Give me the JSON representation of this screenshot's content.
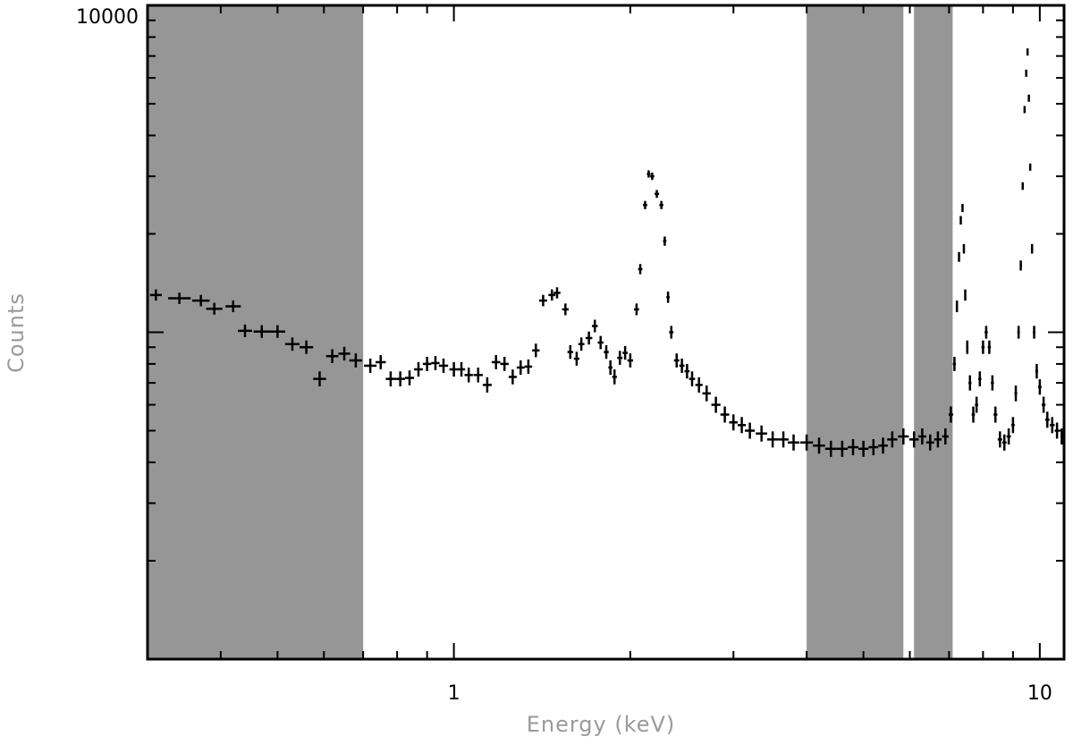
{
  "chart_data": {
    "type": "scatter",
    "xlabel": "Energy (keV)",
    "ylabel": "Counts",
    "xscale": "log",
    "yscale": "log",
    "xlim": [
      0.3,
      11.0
    ],
    "ylim": [
      100,
      10000
    ],
    "x_tick_labels": [
      "1",
      "10"
    ],
    "y_tick_labels": [
      "10000"
    ],
    "grid": false,
    "shaded_regions": [
      {
        "x0": 0.3,
        "x1": 0.7,
        "color": "#969696"
      },
      {
        "x0": 4.0,
        "x1": 5.85,
        "color": "#969696"
      },
      {
        "x0": 6.1,
        "x1": 7.1,
        "color": "#969696"
      }
    ],
    "series": [
      {
        "points": [
          [
            0.31,
            1300
          ],
          [
            0.34,
            1270
          ],
          [
            0.37,
            1250
          ],
          [
            0.39,
            1180
          ],
          [
            0.42,
            1200
          ],
          [
            0.44,
            1010
          ],
          [
            0.47,
            1005
          ],
          [
            0.5,
            1005
          ],
          [
            0.53,
            920
          ],
          [
            0.56,
            900
          ],
          [
            0.59,
            720
          ],
          [
            0.62,
            845
          ],
          [
            0.65,
            860
          ],
          [
            0.68,
            820
          ],
          [
            0.72,
            790
          ],
          [
            0.75,
            810
          ],
          [
            0.78,
            720
          ],
          [
            0.81,
            720
          ],
          [
            0.84,
            725
          ],
          [
            0.87,
            770
          ],
          [
            0.9,
            800
          ],
          [
            0.93,
            805
          ],
          [
            0.96,
            790
          ],
          [
            1.0,
            770
          ],
          [
            1.03,
            770
          ],
          [
            1.06,
            740
          ],
          [
            1.1,
            740
          ],
          [
            1.14,
            690
          ],
          [
            1.18,
            810
          ],
          [
            1.22,
            800
          ],
          [
            1.26,
            730
          ],
          [
            1.3,
            780
          ],
          [
            1.34,
            785
          ],
          [
            1.38,
            880
          ],
          [
            1.42,
            1250
          ],
          [
            1.47,
            1300
          ],
          [
            1.5,
            1320
          ],
          [
            1.55,
            1175
          ],
          [
            1.58,
            870
          ],
          [
            1.62,
            830
          ],
          [
            1.65,
            920
          ],
          [
            1.7,
            960
          ],
          [
            1.74,
            1045
          ],
          [
            1.78,
            930
          ],
          [
            1.82,
            870
          ],
          [
            1.85,
            780
          ],
          [
            1.88,
            730
          ],
          [
            1.92,
            835
          ],
          [
            1.96,
            865
          ],
          [
            2.0,
            820
          ],
          [
            2.05,
            1175
          ],
          [
            2.08,
            1560
          ],
          [
            2.12,
            2450
          ],
          [
            2.15,
            3050
          ],
          [
            2.18,
            3000
          ],
          [
            2.22,
            2650
          ],
          [
            2.26,
            2450
          ],
          [
            2.29,
            1900
          ],
          [
            2.32,
            1280
          ],
          [
            2.35,
            1000
          ],
          [
            2.4,
            820
          ],
          [
            2.45,
            790
          ],
          [
            2.5,
            760
          ],
          [
            2.55,
            720
          ],
          [
            2.62,
            690
          ],
          [
            2.7,
            650
          ],
          [
            2.8,
            600
          ],
          [
            2.9,
            560
          ],
          [
            3.0,
            530
          ],
          [
            3.1,
            520
          ],
          [
            3.2,
            500
          ],
          [
            3.35,
            490
          ],
          [
            3.5,
            470
          ],
          [
            3.65,
            470
          ],
          [
            3.8,
            460
          ],
          [
            4.0,
            460
          ],
          [
            4.2,
            450
          ],
          [
            4.4,
            440
          ],
          [
            4.6,
            440
          ],
          [
            4.8,
            445
          ],
          [
            5.0,
            440
          ],
          [
            5.2,
            445
          ],
          [
            5.4,
            450
          ],
          [
            5.6,
            470
          ],
          [
            5.85,
            480
          ],
          [
            6.1,
            470
          ],
          [
            6.3,
            480
          ],
          [
            6.5,
            460
          ],
          [
            6.7,
            470
          ],
          [
            6.9,
            480
          ],
          [
            7.05,
            560
          ],
          [
            7.15,
            800
          ],
          [
            7.22,
            1200
          ],
          [
            7.28,
            1700
          ],
          [
            7.33,
            2200
          ],
          [
            7.38,
            2400
          ],
          [
            7.42,
            1800
          ],
          [
            7.46,
            1300
          ],
          [
            7.52,
            900
          ],
          [
            7.6,
            700
          ],
          [
            7.7,
            560
          ],
          [
            7.8,
            600
          ],
          [
            7.9,
            720
          ],
          [
            8.0,
            900
          ],
          [
            8.1,
            1000
          ],
          [
            8.2,
            900
          ],
          [
            8.3,
            700
          ],
          [
            8.4,
            560
          ],
          [
            8.55,
            470
          ],
          [
            8.7,
            460
          ],
          [
            8.85,
            480
          ],
          [
            9.0,
            520
          ],
          [
            9.1,
            650
          ],
          [
            9.2,
            1000
          ],
          [
            9.28,
            1600
          ],
          [
            9.35,
            2800
          ],
          [
            9.42,
            4800
          ],
          [
            9.48,
            6200
          ],
          [
            9.53,
            7200
          ],
          [
            9.58,
            5200
          ],
          [
            9.63,
            3200
          ],
          [
            9.7,
            1800
          ],
          [
            9.78,
            1000
          ],
          [
            9.88,
            760
          ],
          [
            10.0,
            680
          ],
          [
            10.15,
            600
          ],
          [
            10.3,
            540
          ],
          [
            10.5,
            520
          ],
          [
            10.7,
            500
          ],
          [
            10.9,
            480
          ]
        ]
      }
    ]
  }
}
